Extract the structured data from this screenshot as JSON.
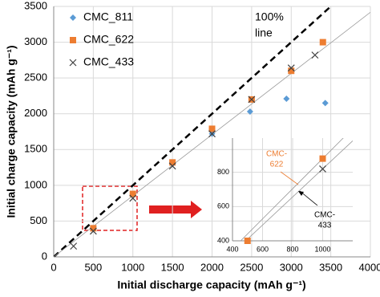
{
  "chart_data": [
    {
      "type": "scatter",
      "x_label": "Initial discharge capacity (mAh g⁻¹)",
      "y_label": "Initial charge capacity (mAh g⁻¹)",
      "xlim": [
        0,
        4000
      ],
      "xticks": [
        0,
        500,
        1000,
        1500,
        2000,
        2500,
        3000,
        3500,
        4000
      ],
      "ylim": [
        0,
        3500
      ],
      "yticks": [
        0,
        500,
        1000,
        1500,
        2000,
        2500,
        3000,
        3500
      ],
      "grid": true,
      "legend": "upper left",
      "annotation": [
        "100%",
        "line"
      ],
      "series": [
        {
          "name": "CMC_811",
          "color": "#5b9bd5",
          "marker": "diamond",
          "x": [
            500,
            1000,
            1500,
            2000,
            2480,
            2940,
            3430
          ],
          "values": [
            390,
            860,
            1300,
            1720,
            2030,
            2210,
            2150
          ]
        },
        {
          "name": "CMC_622",
          "color": "#ed7d31",
          "marker": "square",
          "x": [
            500,
            1000,
            1500,
            2000,
            2500,
            3000,
            3400
          ],
          "values": [
            400,
            880,
            1320,
            1790,
            2200,
            2600,
            3000
          ]
        },
        {
          "name": "CMC_433",
          "color": "#404040",
          "marker": "x",
          "x": [
            250,
            500,
            1000,
            1500,
            2000,
            2500,
            3000,
            3300
          ],
          "values": [
            150,
            360,
            820,
            1270,
            1720,
            2200,
            2640,
            2820
          ]
        }
      ]
    },
    {
      "type": "scatter",
      "xlim": [
        400,
        1200
      ],
      "xticks": [
        400,
        600,
        800,
        1000
      ],
      "ylim": [
        400,
        1000
      ],
      "yticks": [
        400,
        600,
        800
      ],
      "grid": true,
      "series": [
        {
          "label": [
            "CMC-",
            "622"
          ],
          "color": "#ed7d31",
          "marker": "square",
          "x": [
            500,
            1000
          ],
          "values": [
            400,
            880
          ]
        },
        {
          "label": [
            "CMC-",
            "433"
          ],
          "color": "#404040",
          "marker": "x",
          "x": [
            1000
          ],
          "values": [
            820
          ]
        }
      ]
    }
  ]
}
